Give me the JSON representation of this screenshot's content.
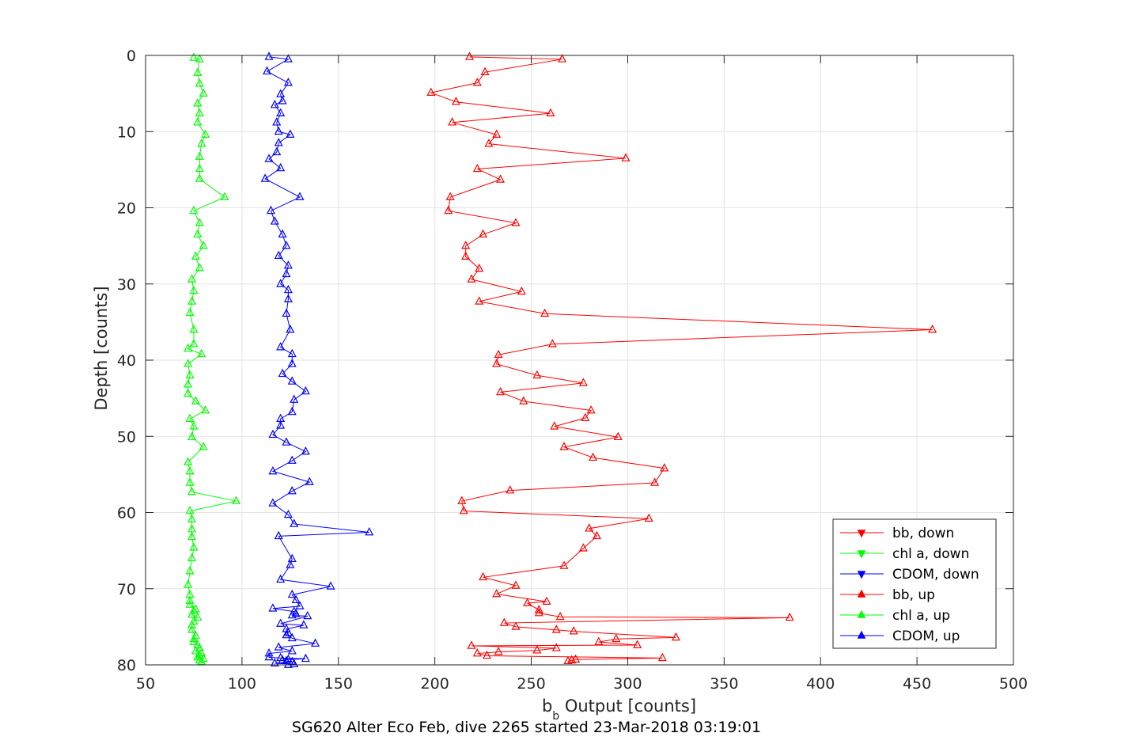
{
  "chart_data": {
    "type": "line",
    "caption": "SG620 Alter Eco Feb, dive 2265 started 23-Mar-2018 03:19:01",
    "xlabel_main": "b",
    "xlabel_sub": "b",
    "xlabel_rest": " Output [counts]",
    "ylabel": "Depth [counts]",
    "xlim": [
      50,
      500
    ],
    "ylim": [
      0,
      80
    ],
    "y_reversed": true,
    "grid": true,
    "legend_position": "bottom-right",
    "xticks": [
      50,
      100,
      150,
      200,
      250,
      300,
      350,
      400,
      450,
      500
    ],
    "yticks": [
      0,
      10,
      20,
      30,
      40,
      50,
      60,
      70,
      80
    ],
    "series": [
      {
        "name": "bb, down",
        "color": "#ff0000",
        "marker": "triangle-down",
        "x": [],
        "y": []
      },
      {
        "name": "chl a, down",
        "color": "#00ff00",
        "marker": "triangle-down",
        "x": [],
        "y": []
      },
      {
        "name": "CDOM, down",
        "color": "#0000ff",
        "marker": "triangle-down",
        "x": [],
        "y": []
      },
      {
        "name": "bb, up",
        "color": "#ff0000",
        "marker": "triangle-up",
        "x": [
          218,
          266,
          226,
          222,
          198,
          211,
          260,
          209,
          232,
          228,
          299,
          222,
          234,
          208,
          207,
          242,
          225,
          216,
          216,
          223,
          219,
          245,
          223,
          257,
          458,
          261,
          233,
          232,
          253,
          277,
          234,
          246,
          281,
          278,
          262,
          295,
          267,
          282,
          319,
          314,
          239,
          214,
          215,
          311,
          280,
          284,
          277,
          267,
          225,
          242,
          232,
          258,
          248,
          254,
          254,
          265,
          384,
          236,
          242,
          263,
          272,
          325,
          294,
          285,
          305,
          219,
          263,
          253,
          233,
          222,
          227,
          318,
          273,
          271,
          269
        ],
        "y": [
          0.2,
          0.5,
          2.2,
          3.6,
          4.9,
          6.1,
          7.6,
          8.8,
          10.4,
          11.6,
          13.5,
          14.9,
          16.3,
          18.6,
          20.4,
          22.0,
          23.5,
          25.0,
          26.4,
          28.0,
          29.4,
          31.0,
          32.3,
          33.9,
          36.0,
          37.9,
          39.3,
          40.5,
          42.0,
          43.0,
          44.2,
          45.4,
          46.6,
          47.6,
          48.7,
          50.1,
          51.4,
          52.8,
          54.2,
          56.1,
          57.1,
          58.5,
          59.8,
          60.8,
          62.1,
          63.1,
          64.7,
          67.0,
          68.5,
          69.6,
          70.7,
          71.7,
          71.9,
          72.8,
          73.2,
          73.7,
          73.8,
          74.5,
          75.0,
          75.4,
          75.6,
          76.4,
          76.6,
          77.0,
          77.4,
          77.5,
          77.8,
          78.1,
          78.3,
          78.5,
          78.8,
          79.1,
          79.3,
          79.4,
          79.5
        ]
      },
      {
        "name": "chl a, up",
        "color": "#00ff00",
        "marker": "triangle-up",
        "x": [
          75,
          78,
          77,
          78,
          80,
          77,
          78,
          77,
          81,
          79,
          78,
          78,
          78,
          91,
          75,
          78,
          77,
          80,
          76,
          78,
          74,
          75,
          74,
          73,
          75,
          75,
          72,
          79,
          72,
          73,
          72,
          72,
          76,
          81,
          73,
          75,
          74,
          80,
          72,
          73,
          73,
          74,
          97,
          73,
          74,
          74,
          74,
          75,
          74,
          73,
          72,
          73,
          73,
          73,
          76,
          75,
          74,
          77,
          75,
          74,
          74,
          76,
          75,
          75,
          77,
          78,
          76,
          79,
          78,
          77,
          80,
          78,
          79
        ],
        "y": [
          0.3,
          0.5,
          2.3,
          3.7,
          5.0,
          6.3,
          7.6,
          8.8,
          10.4,
          11.6,
          13.3,
          14.9,
          16.2,
          18.6,
          20.4,
          22.0,
          23.5,
          25.0,
          26.4,
          27.9,
          29.4,
          30.9,
          32.3,
          33.8,
          36.0,
          37.9,
          38.5,
          39.2,
          40.5,
          42.0,
          43.2,
          44.4,
          45.4,
          46.6,
          47.7,
          48.7,
          50.1,
          51.4,
          53.4,
          54.6,
          56.1,
          57.3,
          58.5,
          59.8,
          60.9,
          62.2,
          63.2,
          64.6,
          66.0,
          67.7,
          69.5,
          70.8,
          71.6,
          72.1,
          72.7,
          72.9,
          73.4,
          73.8,
          74.3,
          74.8,
          75.4,
          76.2,
          76.6,
          77.0,
          77.4,
          77.8,
          78.2,
          78.5,
          78.8,
          79.0,
          79.2,
          79.4,
          79.6
        ]
      },
      {
        "name": "CDOM, up",
        "color": "#0000ff",
        "marker": "triangle-up",
        "x": [
          114,
          124,
          113,
          124,
          120,
          121,
          117,
          120,
          118,
          119,
          125,
          119,
          118,
          114,
          120,
          112,
          130,
          115,
          117,
          121,
          123,
          119,
          124,
          123,
          120,
          124,
          124,
          123,
          125,
          120,
          126,
          126,
          121,
          126,
          133,
          127,
          126,
          120,
          120,
          116,
          123,
          133,
          126,
          116,
          135,
          126,
          116,
          124,
          127,
          166,
          119,
          126,
          125,
          120,
          146,
          126,
          128,
          130,
          116,
          127,
          128,
          126,
          134,
          120,
          132,
          123,
          124,
          123,
          126,
          138,
          119,
          126,
          114,
          114,
          120,
          133,
          124,
          121,
          123,
          126,
          117,
          127,
          124
        ],
        "y": [
          0.2,
          0.5,
          2.1,
          3.6,
          5.1,
          6.0,
          6.5,
          7.6,
          8.8,
          10.0,
          10.4,
          11.5,
          12.7,
          13.6,
          14.8,
          16.2,
          18.6,
          20.4,
          21.8,
          23.5,
          25.0,
          26.3,
          27.6,
          28.7,
          30.0,
          30.8,
          32.0,
          33.9,
          36.0,
          38.3,
          39.2,
          40.5,
          41.8,
          42.8,
          44.1,
          45.2,
          46.8,
          47.7,
          48.6,
          49.8,
          50.8,
          52.0,
          53.2,
          54.6,
          56.0,
          57.2,
          58.8,
          60.3,
          61.5,
          62.6,
          63.1,
          66.1,
          66.9,
          68.8,
          69.7,
          70.8,
          71.5,
          72.3,
          72.6,
          73.0,
          73.3,
          73.5,
          73.6,
          74.6,
          74.8,
          75.3,
          75.8,
          76.1,
          76.5,
          77.2,
          77.7,
          78.2,
          78.5,
          79.0,
          79.1,
          79.2,
          79.3,
          79.4,
          79.5,
          79.6,
          79.8,
          79.9,
          80.0
        ]
      }
    ]
  }
}
